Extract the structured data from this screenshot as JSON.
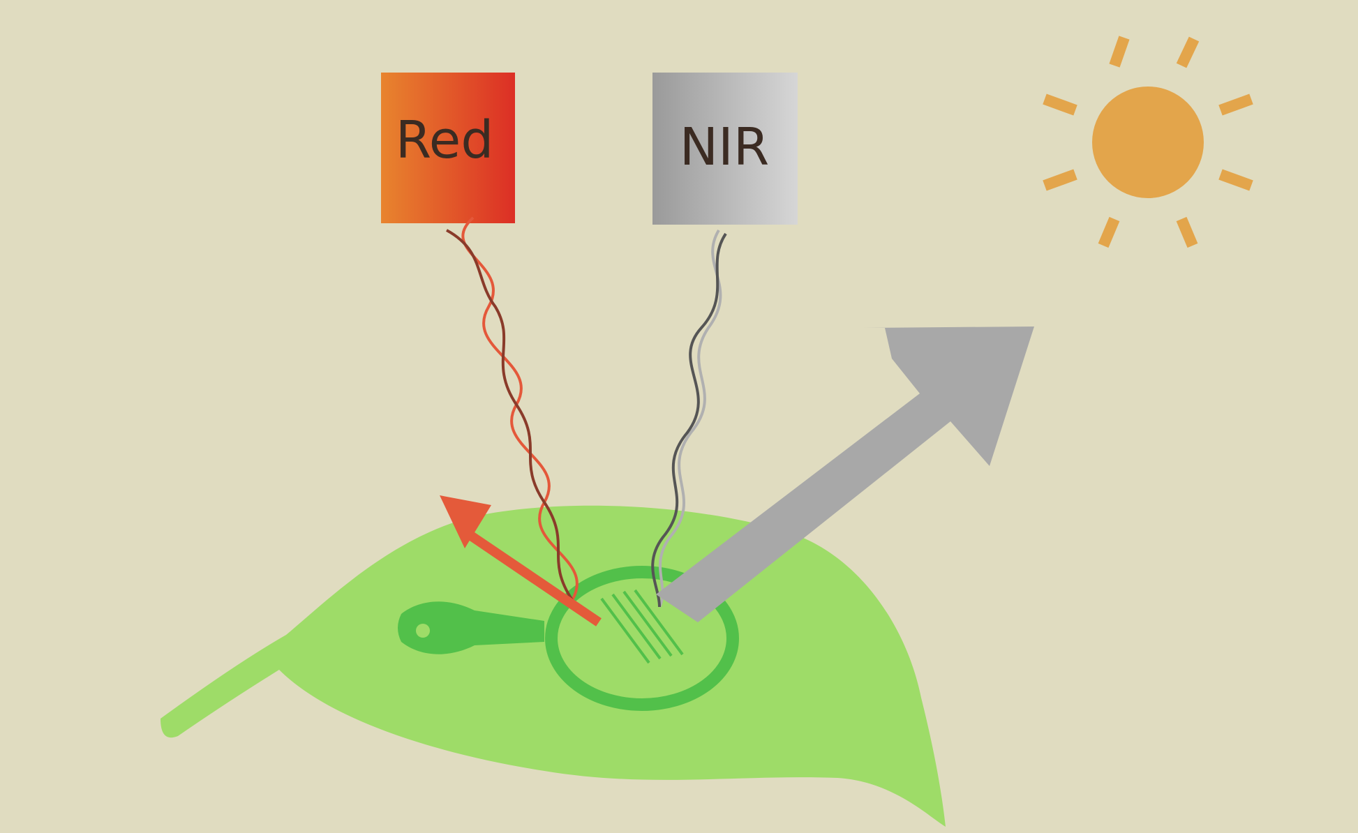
{
  "bands": {
    "red_label": "Red",
    "nir_label": "NIR"
  },
  "colors": {
    "background": "#e0dcc0",
    "red_band": "#e0452c",
    "red_band_left": "#e87a2a",
    "nir_band": "#a6a6a6",
    "leaf": "#9edc68",
    "leaf_vein": "#52c04a",
    "sun": "#e3a54b",
    "reflect_arrow": "#a8a8a8",
    "red_arrow": "#e45a3a"
  },
  "icons": {
    "sun": "sun-icon",
    "leaf": "leaf-icon",
    "magnifier": "magnifier-icon"
  }
}
